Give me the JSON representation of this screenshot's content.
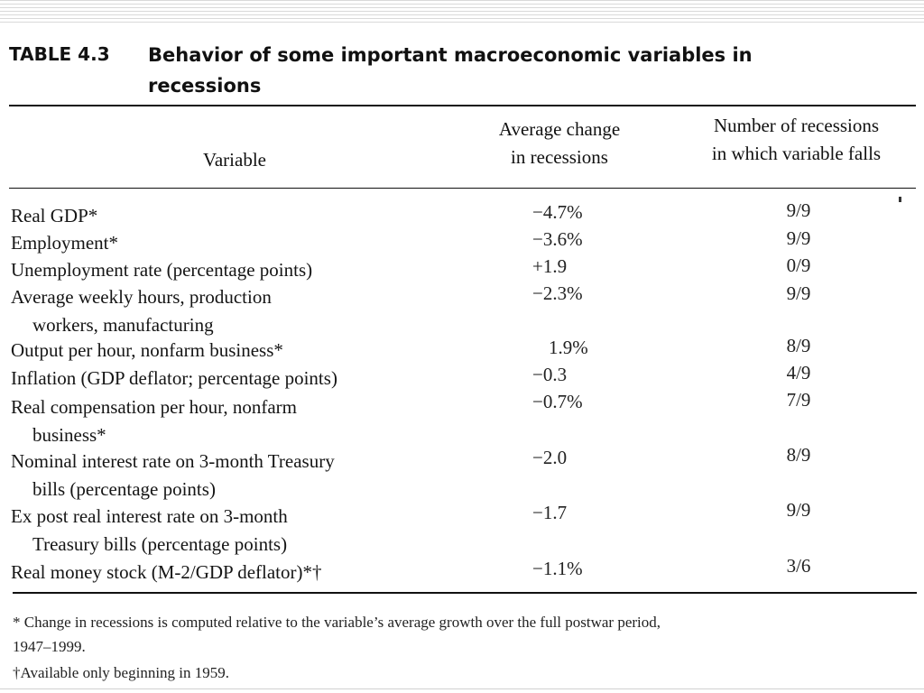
{
  "table": {
    "number": "TABLE 4.3",
    "title": "Behavior of some important macroeconomic variables in recessions"
  },
  "columns": {
    "variable": "Variable",
    "change_line1": "Average change",
    "change_line2": "in recessions",
    "count_line1": "Number of recessions",
    "count_line2": "in which variable falls"
  },
  "rows": [
    {
      "label": "Real GDP*",
      "cont": "",
      "change": "−4.7%",
      "count": "9/9"
    },
    {
      "label": "Employment*",
      "cont": "",
      "change": "−3.6%",
      "count": "9/9"
    },
    {
      "label": "Unemployment rate (percentage points)",
      "cont": "",
      "change": "+1.9",
      "count": "0/9"
    },
    {
      "label": "Average weekly hours, production",
      "cont": "workers, manufacturing",
      "change": "−2.3%",
      "count": "9/9"
    },
    {
      "label": "Output per hour, nonfarm business*",
      "cont": "",
      "change": "1.9%",
      "count": "8/9"
    },
    {
      "label": "Inflation (GDP deflator; percentage points)",
      "cont": "",
      "change": "−0.3",
      "count": "4/9"
    },
    {
      "label": "Real compensation per hour, nonfarm",
      "cont": "business*",
      "change": "−0.7%",
      "count": "7/9"
    },
    {
      "label": "Nominal interest rate on 3-month Treasury",
      "cont": "bills (percentage points)",
      "change": "−2.0",
      "count": "8/9"
    },
    {
      "label": "Ex post real interest rate on 3-month",
      "cont": "Treasury bills (percentage points)",
      "change": "−1.7",
      "count": "9/9"
    },
    {
      "label": "Real money stock (M-2/GDP deflator)*†",
      "cont": "",
      "change": "−1.1%",
      "count": "3/6"
    }
  ],
  "footnotes": {
    "note1_line1": "* Change in recessions is computed relative to the variable’s average growth over the full postwar period,",
    "note1_line2": "1947–1999.",
    "note2": "†Available only beginning in 1959."
  }
}
